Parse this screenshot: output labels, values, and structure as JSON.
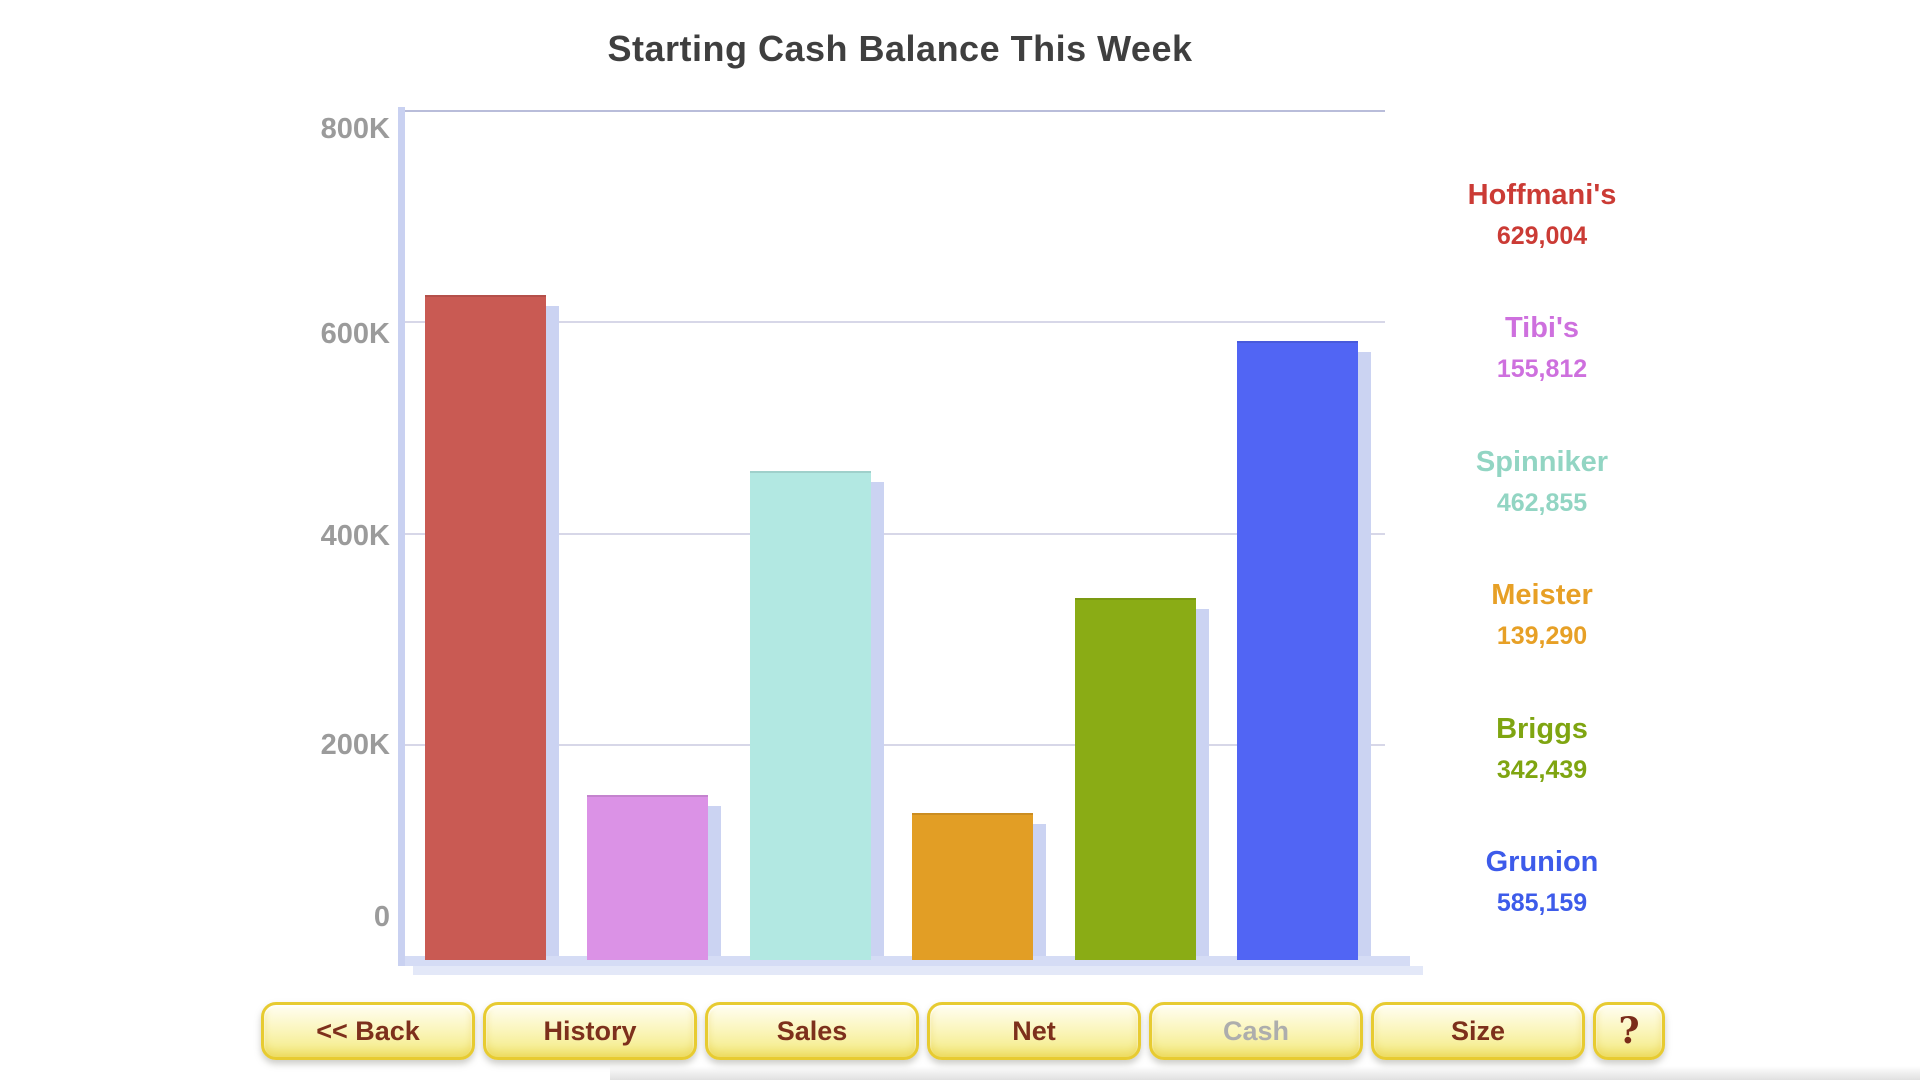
{
  "title": "Starting Cash Balance This Week",
  "chart_data": {
    "type": "bar",
    "title": "Starting Cash Balance This Week",
    "categories": [
      "Hoffmani's",
      "Tibi's",
      "Spinniker",
      "Meister",
      "Briggs",
      "Grunion"
    ],
    "values": [
      629004,
      155812,
      462855,
      139290,
      342439,
      585159
    ],
    "value_labels": [
      "629,004",
      "155,812",
      "462,855",
      "139,290",
      "342,439",
      "585,159"
    ],
    "bar_colors": [
      "#c95a53",
      "#db92e6",
      "#b2e8e2",
      "#e29e25",
      "#8aac15",
      "#5165f4"
    ],
    "label_colors": [
      "#cb3b35",
      "#ce70de",
      "#92d5c3",
      "#e7a026",
      "#7fa511",
      "#3d5bea"
    ],
    "xlabel": "",
    "ylabel": "",
    "ylim": [
      0,
      800000
    ],
    "ytick_labels": [
      "800K",
      "600K",
      "400K",
      "200K",
      "0"
    ],
    "ytick_values": [
      800000,
      600000,
      400000,
      200000,
      0
    ],
    "grid": true,
    "legend_position": "right",
    "colors": {
      "title_text": "#3f3f3f",
      "tick_text": "#9b9b9b",
      "gridline": "#d7d7e8",
      "axis": "#ccd5f3",
      "bar_shadow": "#cbd3f2"
    }
  },
  "toolbar": {
    "buttons": [
      {
        "id": "back",
        "label": "<< Back",
        "state": "enabled"
      },
      {
        "id": "history",
        "label": "History",
        "state": "enabled"
      },
      {
        "id": "sales",
        "label": "Sales",
        "state": "enabled"
      },
      {
        "id": "net",
        "label": "Net",
        "state": "enabled"
      },
      {
        "id": "cash",
        "label": "Cash",
        "state": "disabled"
      },
      {
        "id": "size",
        "label": "Size",
        "state": "enabled"
      },
      {
        "id": "help",
        "label": "?",
        "state": "enabled"
      }
    ],
    "text_color": "#7d301c",
    "disabled_text_color": "#adadad"
  }
}
